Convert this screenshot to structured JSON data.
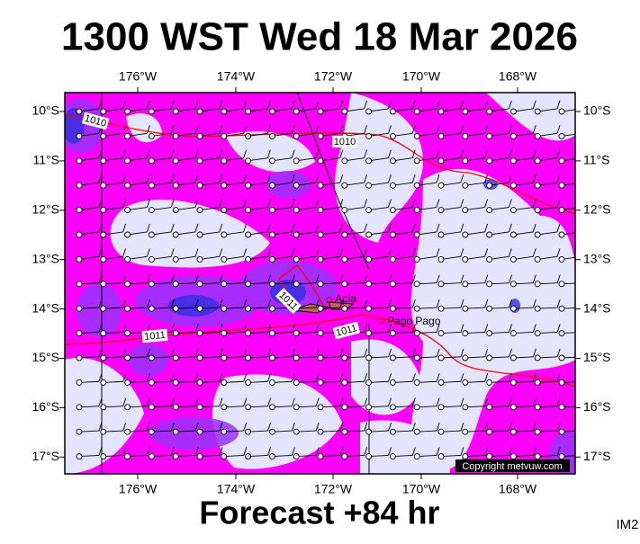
{
  "title": "1300 WST Wed 18 Mar 2026",
  "footer": "Forecast +84 hr",
  "corner_label": "IM2",
  "copyright": "Copyright metvuw.com",
  "longitude_labels": [
    "176°W",
    "174°W",
    "172°W",
    "170°W",
    "168°W"
  ],
  "latitude_labels": [
    "10°S",
    "11°S",
    "12°S",
    "13°S",
    "14°S",
    "15°S",
    "16°S",
    "17°S"
  ],
  "places": [
    "Apia",
    "Pago Pago"
  ],
  "contour_labels": [
    "1010",
    "1010",
    "1011",
    "1011",
    "1011"
  ]
}
